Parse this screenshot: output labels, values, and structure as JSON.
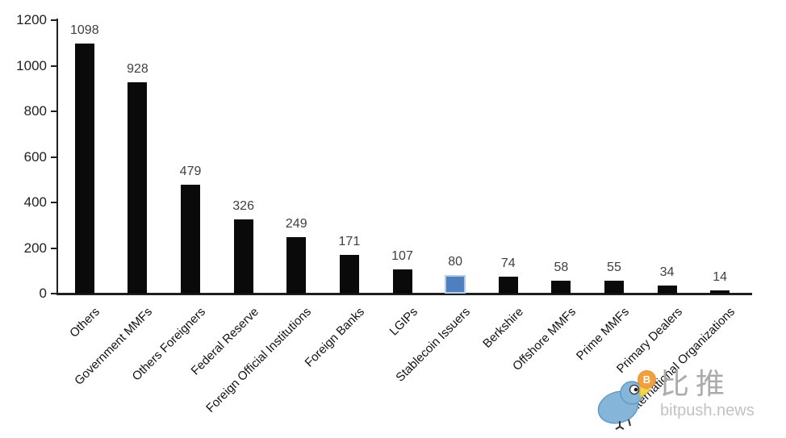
{
  "chart_data": {
    "type": "bar",
    "title": "",
    "xlabel": "",
    "ylabel": "",
    "categories": [
      "Others",
      "Government MMFs",
      "Others Foreigners",
      "Federal Reserve",
      "Foreign Official Institutions",
      "Foreign Banks",
      "LGIPs",
      "Stablecoin Issuers",
      "Berkshire",
      "Offshore MMFs",
      "Prime MMFs",
      "Primary Dealers",
      "International Organizations"
    ],
    "values": [
      1098,
      928,
      479,
      326,
      249,
      171,
      107,
      80,
      74,
      58,
      55,
      34,
      14
    ],
    "highlighted_category": "Stablecoin Issuers",
    "ylim": [
      0,
      1200
    ],
    "yticks": [
      0,
      200,
      400,
      600,
      800,
      1000,
      1200
    ],
    "grid": false,
    "legend": "none",
    "data_labels_shown": true,
    "colors": {
      "bar": "#0a0a0a",
      "highlight_fill": "#4e7fbe",
      "highlight_border": "#b7cbe5",
      "value_label": "#3f3f3f",
      "axis": "#1f1f1f"
    }
  },
  "watermark": {
    "brand_name_cn": "比推",
    "domain": "bitpush.news",
    "icons": {
      "bird": "bitpush-bird-icon",
      "coin": "bitcoin-coin-icon"
    },
    "coin_symbol": "B",
    "colors": {
      "bird": "#85b6da",
      "coin": "#f0a03c",
      "text_cn": "#ababab",
      "text_domain": "#c2c2c2"
    }
  }
}
